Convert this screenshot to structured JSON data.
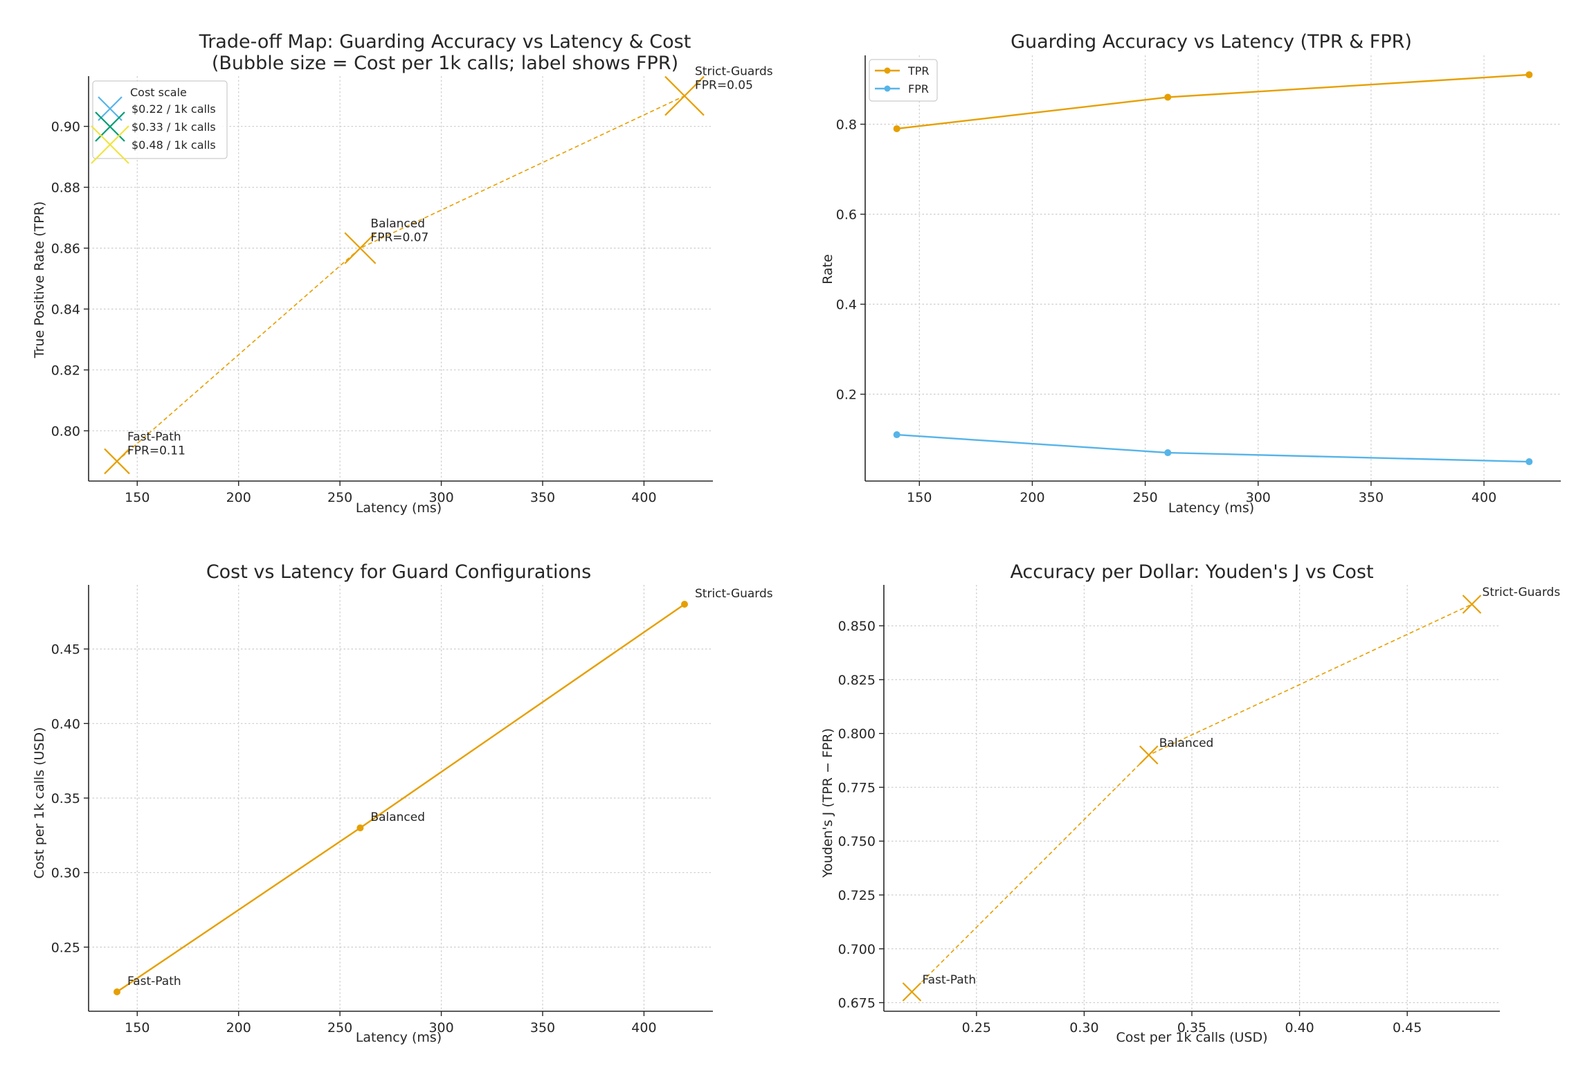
{
  "colors": {
    "accent": "#E69F00",
    "fpr_line": "#56B4E9",
    "legend_small": "#56B4E9",
    "legend_mid": "#009E73",
    "legend_large": "#F0E442",
    "grid": "#cccccc",
    "text": "#262626"
  },
  "chart_data": [
    {
      "id": "tradeoff",
      "type": "scatter",
      "title": "Trade-off Map: Guarding Accuracy vs Latency & Cost",
      "subtitle": "(Bubble size = Cost per 1k calls; label shows FPR)",
      "xlabel": "Latency (ms)",
      "ylabel": "True Positive Rate (TPR)",
      "xlim": [
        126,
        434
      ],
      "ylim": [
        0.7835,
        0.9165
      ],
      "xticks": [
        150,
        200,
        250,
        300,
        350,
        400
      ],
      "yticks": [
        0.8,
        0.82,
        0.84,
        0.86,
        0.88,
        0.9
      ],
      "ytick_format": 2,
      "points": [
        {
          "name": "Fast-Path",
          "x": 140,
          "y": 0.79,
          "cost": 0.22,
          "annotation": [
            "Fast-Path",
            "FPR=0.11"
          ]
        },
        {
          "name": "Balanced",
          "x": 260,
          "y": 0.86,
          "cost": 0.33,
          "annotation": [
            "Balanced",
            "FPR=0.07"
          ]
        },
        {
          "name": "Strict-Guards",
          "x": 420,
          "y": 0.91,
          "cost": 0.48,
          "annotation": [
            "Strict-Guards",
            "FPR=0.05"
          ]
        }
      ],
      "legend": {
        "title": "Cost scale",
        "placement": "upper-left",
        "entries": [
          {
            "label": "$0.22 / 1k calls",
            "cost": 0.22,
            "color": "#56B4E9"
          },
          {
            "label": "$0.33 / 1k calls",
            "cost": 0.33,
            "color": "#009E73"
          },
          {
            "label": "$0.48 / 1k calls",
            "cost": 0.48,
            "color": "#F0E442"
          }
        ]
      }
    },
    {
      "id": "accuracy",
      "type": "line",
      "title": "Guarding Accuracy vs Latency (TPR & FPR)",
      "xlabel": "Latency (ms)",
      "ylabel": "Rate",
      "xlim": [
        126,
        434
      ],
      "ylim": [
        0.007,
        0.953
      ],
      "xticks": [
        150,
        200,
        250,
        300,
        350,
        400
      ],
      "yticks": [
        0.2,
        0.4,
        0.6,
        0.8
      ],
      "ytick_format": 1,
      "x": [
        140,
        260,
        420
      ],
      "series": [
        {
          "name": "TPR",
          "values": [
            0.79,
            0.86,
            0.91
          ],
          "color": "#E69F00"
        },
        {
          "name": "FPR",
          "values": [
            0.11,
            0.07,
            0.05
          ],
          "color": "#56B4E9"
        }
      ],
      "legend": {
        "placement": "upper-left"
      }
    },
    {
      "id": "costlat",
      "type": "line",
      "title": "Cost vs Latency for Guard Configurations",
      "xlabel": "Latency (ms)",
      "ylabel": "Cost per 1k calls (USD)",
      "xlim": [
        126,
        434
      ],
      "ylim": [
        0.207,
        0.493
      ],
      "xticks": [
        150,
        200,
        250,
        300,
        350,
        400
      ],
      "yticks": [
        0.25,
        0.3,
        0.35,
        0.4,
        0.45
      ],
      "ytick_format": 2,
      "points": [
        {
          "name": "Fast-Path",
          "x": 140,
          "y": 0.22,
          "annotation": [
            "Fast-Path"
          ]
        },
        {
          "name": "Balanced",
          "x": 260,
          "y": 0.33,
          "annotation": [
            "Balanced"
          ]
        },
        {
          "name": "Strict-Guards",
          "x": 420,
          "y": 0.48,
          "annotation": [
            "Strict-Guards"
          ]
        }
      ]
    },
    {
      "id": "youden",
      "type": "scatter",
      "title": "Accuracy per Dollar: Youden's J vs Cost",
      "xlabel": "Cost per 1k calls (USD)",
      "ylabel": "Youden's J (TPR − FPR)",
      "xlim": [
        0.207,
        0.493
      ],
      "ylim": [
        0.671,
        0.869
      ],
      "xticks": [
        0.25,
        0.3,
        0.35,
        0.4,
        0.45
      ],
      "yticks": [
        0.675,
        0.7,
        0.725,
        0.75,
        0.775,
        0.8,
        0.825,
        0.85
      ],
      "xtick_format": 2,
      "ytick_format": 3,
      "points": [
        {
          "name": "Fast-Path",
          "x": 0.22,
          "y": 0.68,
          "annotation": [
            "Fast-Path"
          ]
        },
        {
          "name": "Balanced",
          "x": 0.33,
          "y": 0.79,
          "annotation": [
            "Balanced"
          ]
        },
        {
          "name": "Strict-Guards",
          "x": 0.48,
          "y": 0.86,
          "annotation": [
            "Strict-Guards"
          ]
        }
      ]
    }
  ]
}
